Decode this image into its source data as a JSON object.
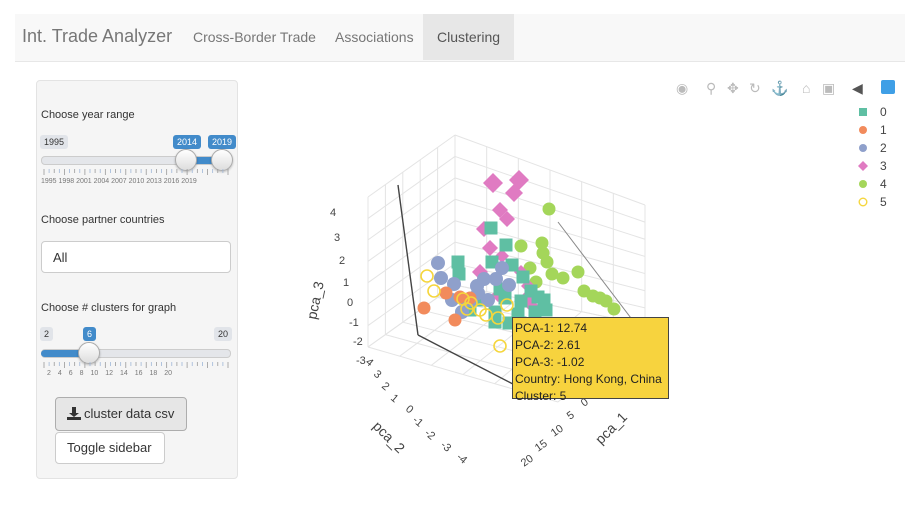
{
  "navbar": {
    "brand": "Int. Trade Analyzer",
    "tabs": [
      {
        "label": "Cross-Border Trade",
        "active": false
      },
      {
        "label": "Associations",
        "active": false
      },
      {
        "label": "Clustering",
        "active": true
      }
    ]
  },
  "sidebar": {
    "year_range": {
      "label": "Choose year range",
      "min": "1995",
      "from": "2014",
      "to": "2019",
      "tick_labels": [
        "1995",
        "1998",
        "2001",
        "2004",
        "2007",
        "2010",
        "2013",
        "2016",
        "2019"
      ]
    },
    "partner_countries": {
      "label": "Choose partner countries",
      "value": "All"
    },
    "clusters": {
      "label": "Choose # clusters for graph",
      "min": "2",
      "value": "6",
      "max": "20",
      "tick_labels": [
        "2",
        "4",
        "6",
        "8",
        "10",
        "12",
        "14",
        "16",
        "18",
        "20"
      ]
    },
    "download_button": "cluster data csv",
    "toggle_button": "Toggle sidebar"
  },
  "modebar": {
    "icons": [
      "camera-icon",
      "zoom-icon",
      "pan-icon",
      "orbit-rotation-icon",
      "turntable-rotation-icon",
      "reset-camera-icon",
      "last-save-icon",
      "toggle-hover-icon",
      "plotly-logo-icon"
    ]
  },
  "legend": {
    "items": [
      {
        "label": "0",
        "color": "#5fbfa3",
        "symbol": "square"
      },
      {
        "label": "1",
        "color": "#f28b5c",
        "symbol": "circle"
      },
      {
        "label": "2",
        "color": "#8fa0cb",
        "symbol": "circle"
      },
      {
        "label": "3",
        "color": "#e07bc2",
        "symbol": "diamond"
      },
      {
        "label": "4",
        "color": "#a4d65a",
        "symbol": "circle"
      },
      {
        "label": "5",
        "color": "#f5d63d",
        "symbol": "circle-open"
      }
    ]
  },
  "plot": {
    "axes": {
      "pca_1": {
        "title": "pca_1",
        "ticks": [
          "0",
          "5",
          "10",
          "15",
          "20"
        ]
      },
      "pca_2": {
        "title": "pca_2",
        "ticks": [
          "4",
          "3",
          "2",
          "1",
          "0",
          "-1",
          "-2",
          "-3",
          "-4"
        ]
      },
      "pca_3": {
        "title": "pca_3",
        "ticks": [
          "4",
          "3",
          "2",
          "1",
          "0",
          "-1",
          "-2",
          "-3"
        ]
      }
    }
  },
  "tooltip": {
    "lines": [
      "PCA-1: 12.74",
      "PCA-2: 2.61",
      "PCA-3: -1.02",
      "Country: Hong Kong, China",
      "Cluster: 5"
    ]
  }
}
